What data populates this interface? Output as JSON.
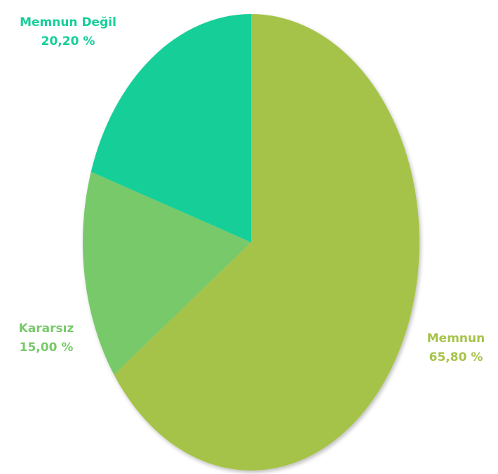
{
  "chart_data": {
    "type": "pie",
    "categories": [
      "Memnun",
      "Kararsız",
      "Memnun Değil"
    ],
    "values": [
      65.8,
      15.0,
      20.2
    ],
    "value_labels": [
      "65,80 %",
      "15,00 %",
      "20,20 %"
    ],
    "colors": [
      "#a6c34a",
      "#78c96a",
      "#14cf98"
    ]
  }
}
